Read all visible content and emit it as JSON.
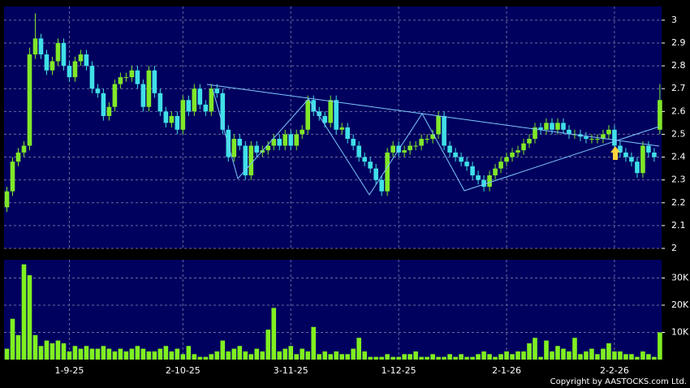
{
  "chart_data": {
    "type": "candlestick",
    "xlim": [
      -0.5,
      115.3
    ],
    "xticks": [
      {
        "value": 11,
        "label": "1-9-25"
      },
      {
        "value": 31,
        "label": "2-10-25"
      },
      {
        "value": 50,
        "label": "3-11-25"
      },
      {
        "value": 69,
        "label": "1-12-25"
      },
      {
        "value": 88,
        "label": "2-1-26"
      },
      {
        "value": 107,
        "label": "2-2-26"
      }
    ],
    "ylim": [
      2,
      3.06
    ],
    "yticks": [
      2,
      2.1,
      2.2,
      2.3,
      2.4,
      2.5,
      2.6,
      2.7,
      2.8,
      2.9,
      3
    ],
    "grid": true,
    "up_color": "#80e828",
    "down_color": "#40e0e8",
    "open": [
      2.18,
      2.25,
      2.38,
      2.42,
      2.45,
      2.85,
      2.92,
      2.85,
      2.78,
      2.82,
      2.9,
      2.8,
      2.75,
      2.82,
      2.85,
      2.8,
      2.7,
      2.68,
      2.58,
      2.62,
      2.72,
      2.75,
      2.75,
      2.78,
      2.72,
      2.62,
      2.78,
      2.68,
      2.6,
      2.55,
      2.58,
      2.52,
      2.65,
      2.6,
      2.7,
      2.63,
      2.6,
      2.7,
      2.68,
      2.52,
      2.4,
      2.48,
      2.45,
      2.32,
      2.45,
      2.42,
      2.43,
      2.45,
      2.48,
      2.45,
      2.5,
      2.45,
      2.5,
      2.52,
      2.65,
      2.6,
      2.58,
      2.55,
      2.65,
      2.52,
      2.53,
      2.48,
      2.45,
      2.4,
      2.38,
      2.35,
      2.3,
      2.25,
      2.42,
      2.45,
      2.42,
      2.43,
      2.45,
      2.45,
      2.48,
      2.48,
      2.5,
      2.58,
      2.45,
      2.42,
      2.4,
      2.38,
      2.36,
      2.32,
      2.3,
      2.27,
      2.32,
      2.35,
      2.38,
      2.4,
      2.42,
      2.43,
      2.46,
      2.48,
      2.53,
      2.52,
      2.55,
      2.52,
      2.55,
      2.52,
      2.5,
      2.5,
      2.49,
      2.48,
      2.48,
      2.48,
      2.5,
      2.52,
      2.45,
      2.42,
      2.4,
      2.38,
      2.33,
      2.45,
      2.42,
      2.52
    ],
    "high": [
      2.27,
      2.4,
      2.44,
      2.47,
      2.88,
      3.03,
      2.94,
      2.87,
      2.84,
      2.92,
      2.92,
      2.82,
      2.84,
      2.87,
      2.87,
      2.82,
      2.72,
      2.7,
      2.64,
      2.74,
      2.77,
      2.77,
      2.8,
      2.8,
      2.74,
      2.8,
      2.8,
      2.7,
      2.62,
      2.6,
      2.6,
      2.67,
      2.67,
      2.72,
      2.72,
      2.65,
      2.72,
      2.72,
      2.7,
      2.54,
      2.5,
      2.5,
      2.47,
      2.47,
      2.47,
      2.45,
      2.47,
      2.5,
      2.5,
      2.52,
      2.52,
      2.52,
      2.54,
      2.67,
      2.67,
      2.62,
      2.6,
      2.67,
      2.67,
      2.55,
      2.55,
      2.5,
      2.47,
      2.42,
      2.4,
      2.37,
      2.32,
      2.44,
      2.47,
      2.47,
      2.45,
      2.47,
      2.47,
      2.5,
      2.5,
      2.52,
      2.6,
      2.6,
      2.47,
      2.44,
      2.42,
      2.4,
      2.38,
      2.34,
      2.32,
      2.34,
      2.37,
      2.4,
      2.42,
      2.44,
      2.45,
      2.48,
      2.5,
      2.55,
      2.55,
      2.57,
      2.57,
      2.57,
      2.57,
      2.54,
      2.52,
      2.52,
      2.51,
      2.5,
      2.5,
      2.52,
      2.54,
      2.54,
      2.47,
      2.44,
      2.42,
      2.4,
      2.47,
      2.47,
      2.44,
      2.72
    ],
    "low": [
      2.16,
      2.23,
      2.36,
      2.4,
      2.43,
      2.83,
      2.83,
      2.76,
      2.76,
      2.8,
      2.78,
      2.73,
      2.73,
      2.8,
      2.78,
      2.68,
      2.66,
      2.56,
      2.56,
      2.6,
      2.7,
      2.73,
      2.73,
      2.7,
      2.6,
      2.6,
      2.66,
      2.58,
      2.53,
      2.53,
      2.5,
      2.5,
      2.58,
      2.58,
      2.61,
      2.58,
      2.58,
      2.66,
      2.5,
      2.38,
      2.38,
      2.43,
      2.3,
      2.3,
      2.4,
      2.4,
      2.41,
      2.43,
      2.43,
      2.43,
      2.43,
      2.43,
      2.48,
      2.5,
      2.58,
      2.56,
      2.53,
      2.53,
      2.5,
      2.5,
      2.46,
      2.43,
      2.38,
      2.36,
      2.33,
      2.28,
      2.23,
      2.23,
      2.4,
      2.4,
      2.4,
      2.41,
      2.43,
      2.43,
      2.46,
      2.46,
      2.48,
      2.43,
      2.4,
      2.38,
      2.36,
      2.34,
      2.3,
      2.28,
      2.25,
      2.25,
      2.3,
      2.33,
      2.36,
      2.38,
      2.4,
      2.41,
      2.44,
      2.46,
      2.5,
      2.5,
      2.5,
      2.5,
      2.5,
      2.48,
      2.48,
      2.47,
      2.46,
      2.46,
      2.46,
      2.46,
      2.48,
      2.43,
      2.4,
      2.38,
      2.36,
      2.31,
      2.31,
      2.4,
      2.38,
      2.5
    ],
    "close": [
      2.25,
      2.38,
      2.42,
      2.45,
      2.85,
      2.92,
      2.85,
      2.78,
      2.82,
      2.9,
      2.8,
      2.75,
      2.82,
      2.85,
      2.8,
      2.7,
      2.68,
      2.58,
      2.62,
      2.72,
      2.75,
      2.75,
      2.78,
      2.72,
      2.62,
      2.78,
      2.68,
      2.6,
      2.55,
      2.58,
      2.52,
      2.65,
      2.6,
      2.7,
      2.63,
      2.6,
      2.7,
      2.68,
      2.52,
      2.4,
      2.48,
      2.45,
      2.32,
      2.45,
      2.42,
      2.43,
      2.45,
      2.48,
      2.45,
      2.5,
      2.45,
      2.5,
      2.52,
      2.65,
      2.6,
      2.58,
      2.55,
      2.65,
      2.52,
      2.53,
      2.48,
      2.45,
      2.4,
      2.38,
      2.35,
      2.3,
      2.25,
      2.42,
      2.45,
      2.42,
      2.43,
      2.45,
      2.45,
      2.48,
      2.48,
      2.5,
      2.58,
      2.45,
      2.42,
      2.4,
      2.38,
      2.36,
      2.32,
      2.3,
      2.27,
      2.32,
      2.35,
      2.38,
      2.4,
      2.42,
      2.43,
      2.46,
      2.48,
      2.53,
      2.52,
      2.55,
      2.52,
      2.55,
      2.52,
      2.5,
      2.5,
      2.49,
      2.48,
      2.48,
      2.48,
      2.5,
      2.52,
      2.45,
      2.42,
      2.4,
      2.38,
      2.33,
      2.45,
      2.42,
      2.4,
      2.65
    ],
    "volume": {
      "type": "bar",
      "color": "#80f020",
      "ylim": [
        0,
        36700
      ],
      "yticks": [
        {
          "value": 10000,
          "label": "10K"
        },
        {
          "value": 20000,
          "label": "20K"
        },
        {
          "value": 30000,
          "label": "30K"
        }
      ],
      "values": [
        4000,
        15000,
        9000,
        35000,
        31000,
        9000,
        5000,
        7000,
        6000,
        7000,
        6000,
        3000,
        5000,
        4000,
        5000,
        4000,
        4000,
        5000,
        4000,
        3000,
        4000,
        3000,
        4000,
        5000,
        4000,
        3000,
        3000,
        4000,
        5000,
        3000,
        4000,
        2000,
        5000,
        2000,
        1000,
        1000,
        2000,
        3000,
        7000,
        3000,
        4000,
        5000,
        3000,
        2000,
        4000,
        3000,
        11000,
        19000,
        3000,
        4000,
        5000,
        2000,
        4000,
        3000,
        12000,
        2000,
        3000,
        2000,
        3000,
        2000,
        2000,
        4000,
        8000,
        3000,
        1000,
        1000,
        1000,
        2000,
        1000,
        1000,
        2000,
        2000,
        3000,
        1000,
        1000,
        2000,
        1000,
        1000,
        2000,
        1000,
        2000,
        1000,
        1000,
        2000,
        3000,
        2000,
        1000,
        2000,
        3000,
        2000,
        3000,
        3000,
        6000,
        8000,
        1000,
        7000,
        3000,
        5000,
        4000,
        3000,
        8000,
        2000,
        3000,
        4000,
        2000,
        4000,
        6000,
        3000,
        3000,
        2000,
        2000,
        1000,
        3000,
        2000,
        1000,
        10000
      ]
    },
    "copyright": "Copyright by AASTOCKS.com Ltd."
  }
}
